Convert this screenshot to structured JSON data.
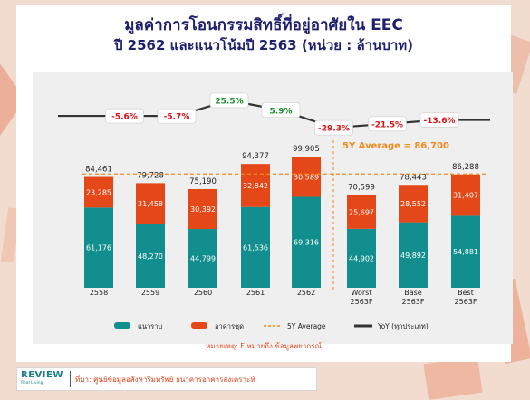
{
  "title_line1": "มูลค่าการโอนกรรมสิทธิ์ที่อยู่อาศัยใน EEC",
  "title_line2": "ปี 2562 และแนวโน้มปี 2563 (หน่วย : ล้านบาท)",
  "note": "หมายเหตุ: F หมายถึง ข้อมูลพยากรณ์",
  "footer": {
    "brand": "REVIEW",
    "brand_sub": "Real Living",
    "source": "ที่มา: ศูนย์ข้อมูลอสังหาริมทรัพย์ ธนาคารอาคารสงเคราะห์"
  },
  "colors": {
    "low_rise": "#138e8e",
    "condo": "#e44818",
    "average": "#f08a1c",
    "yoy_line": "#333333",
    "yoy_pos": "#1b8a2a",
    "yoy_neg": "#d3161b"
  },
  "chart_data": {
    "type": "bar",
    "stacked": true,
    "categories": [
      [
        "2558"
      ],
      [
        "2559"
      ],
      [
        "2560"
      ],
      [
        "2561"
      ],
      [
        "2562"
      ],
      [
        "Worst",
        "2563F"
      ],
      [
        "Base",
        "2563F"
      ],
      [
        "Best",
        "2563F"
      ]
    ],
    "series": [
      {
        "name": "แนวราบ",
        "values": [
          61176,
          48270,
          44799,
          61536,
          69316,
          44902,
          49892,
          54881
        ]
      },
      {
        "name": "อาคารชุด",
        "values": [
          23285,
          31458,
          30392,
          32842,
          30589,
          25697,
          28552,
          31407
        ]
      }
    ],
    "totals": [
      "84,461",
      "79,728",
      "75,190",
      "94,377",
      "99,905",
      "70,599",
      "78,443",
      "86,288"
    ],
    "value_labels": {
      "low_rise": [
        "61,176",
        "48,270",
        "44,799",
        "61,536",
        "69,316",
        "44,902",
        "49,892",
        "54,881"
      ],
      "condo": [
        "23,285",
        "31,458",
        "30,392",
        "32,842",
        "30,589",
        "25,697",
        "28,552",
        "31,407"
      ]
    },
    "average": {
      "name": "5Y Average",
      "value": 86700,
      "label": "5Y Average = 86,700"
    },
    "yoy": {
      "name": "YoY (ทุกประเภท)",
      "labels": [
        "-5.6%",
        "-5.7%",
        "25.5%",
        "5.9%",
        "-29.3%",
        "-21.5%",
        "-13.6%"
      ],
      "values": [
        -5.6,
        -5.7,
        25.5,
        5.9,
        -29.3,
        -21.5,
        -13.6
      ]
    },
    "ylim": [
      0,
      100000
    ],
    "legend_position": "bottom"
  }
}
